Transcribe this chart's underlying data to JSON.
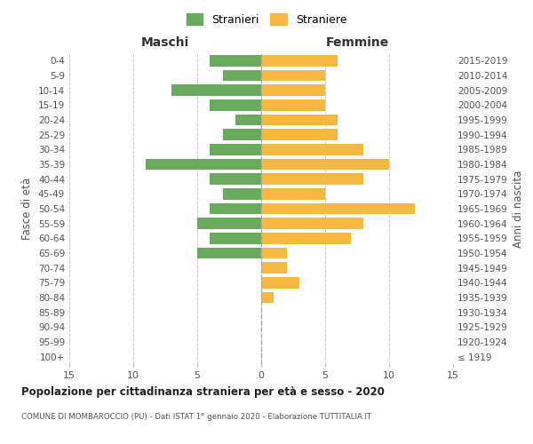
{
  "age_groups": [
    "100+",
    "95-99",
    "90-94",
    "85-89",
    "80-84",
    "75-79",
    "70-74",
    "65-69",
    "60-64",
    "55-59",
    "50-54",
    "45-49",
    "40-44",
    "35-39",
    "30-34",
    "25-29",
    "20-24",
    "15-19",
    "10-14",
    "5-9",
    "0-4"
  ],
  "birth_years": [
    "≤ 1919",
    "1920-1924",
    "1925-1929",
    "1930-1934",
    "1935-1939",
    "1940-1944",
    "1945-1949",
    "1950-1954",
    "1955-1959",
    "1960-1964",
    "1965-1969",
    "1970-1974",
    "1975-1979",
    "1980-1984",
    "1985-1989",
    "1990-1994",
    "1995-1999",
    "2000-2004",
    "2005-2009",
    "2010-2014",
    "2015-2019"
  ],
  "maschi": [
    0,
    0,
    0,
    0,
    0,
    0,
    0,
    5,
    4,
    5,
    4,
    3,
    4,
    9,
    4,
    3,
    2,
    4,
    7,
    3,
    4
  ],
  "femmine": [
    0,
    0,
    0,
    0,
    1,
    3,
    2,
    2,
    7,
    8,
    12,
    5,
    8,
    10,
    8,
    6,
    6,
    5,
    5,
    5,
    6
  ],
  "maschi_color": "#6aaa5e",
  "femmine_color": "#f5b942",
  "bg_color": "#ffffff",
  "grid_color": "#cccccc",
  "title": "Popolazione per cittadinanza straniera per età e sesso - 2020",
  "subtitle": "COMUNE DI MOMBAROCCIO (PU) - Dati ISTAT 1° gennaio 2020 - Elaborazione TUTTITALIA.IT",
  "xlabel_left": "Maschi",
  "xlabel_right": "Femmine",
  "ylabel_left": "Fasce di età",
  "ylabel_right": "Anni di nascita",
  "legend_stranieri": "Stranieri",
  "legend_straniere": "Straniere",
  "xlim": 15
}
